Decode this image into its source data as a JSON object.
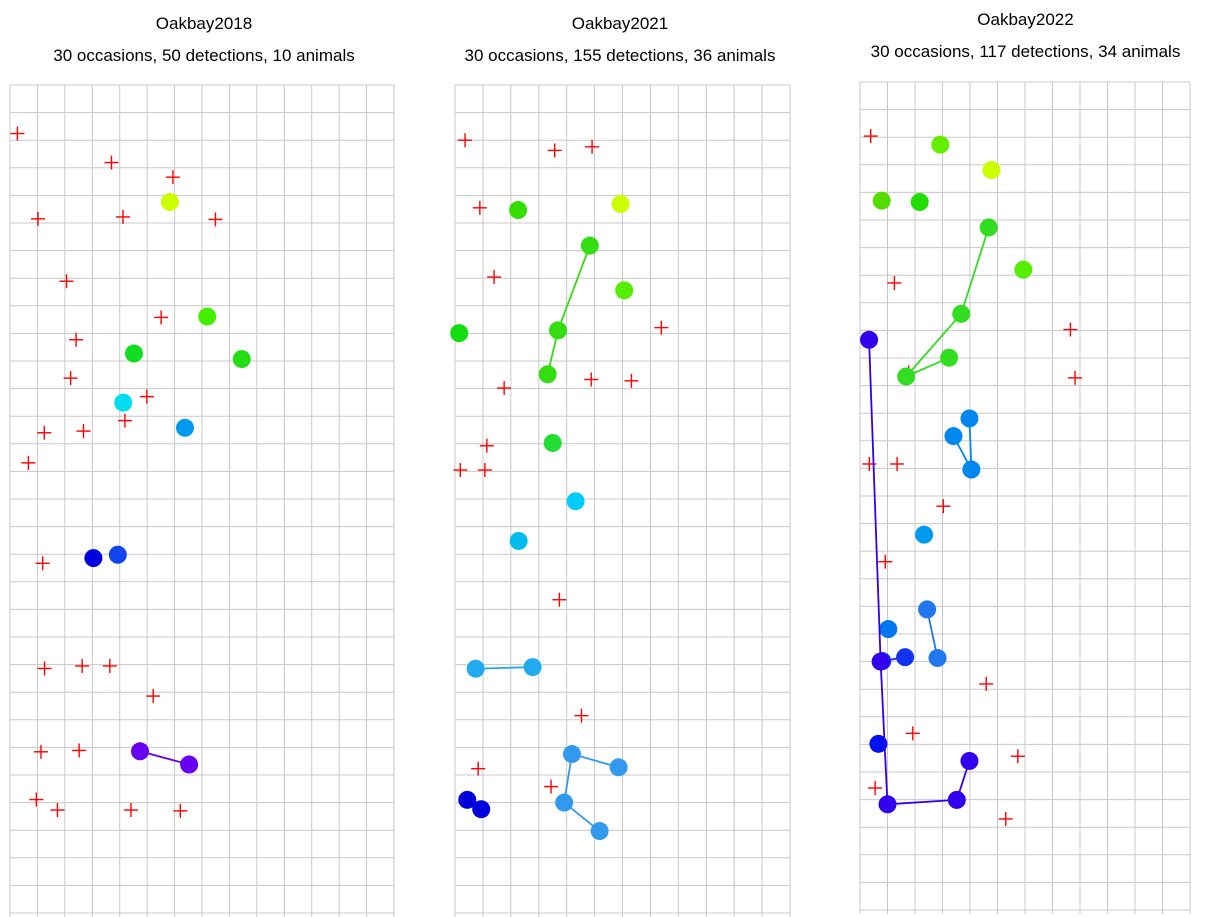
{
  "colors": {
    "grid": "#c8c8c8",
    "trap": "#ff0000"
  },
  "chart_data": [
    {
      "type": "scatter",
      "title": "Oakbay2018",
      "subtitle": "30 occasions, 50 detections, 10 animals",
      "traps": [
        [
          0.27,
          1.76
        ],
        [
          3.7,
          2.81
        ],
        [
          7.49,
          4.87
        ],
        [
          5.94,
          3.34
        ],
        [
          1.02,
          4.85
        ],
        [
          4.12,
          4.78
        ],
        [
          2.06,
          7.11
        ],
        [
          5.51,
          8.42
        ],
        [
          2.41,
          9.23
        ],
        [
          2.21,
          10.62
        ],
        [
          4.99,
          11.29
        ],
        [
          4.19,
          12.16
        ],
        [
          1.25,
          12.6
        ],
        [
          2.68,
          12.54
        ],
        [
          0.67,
          13.69
        ],
        [
          1.19,
          17.33
        ],
        [
          1.26,
          21.14
        ],
        [
          2.63,
          21.05
        ],
        [
          3.64,
          21.05
        ],
        [
          5.22,
          22.14
        ],
        [
          1.13,
          24.16
        ],
        [
          2.52,
          24.11
        ],
        [
          0.96,
          25.89
        ],
        [
          1.73,
          26.27
        ],
        [
          4.41,
          26.27
        ],
        [
          6.21,
          26.3
        ]
      ],
      "animals": [
        {
          "color": "#ccff00",
          "points": [
            [
              5.83,
              4.24
            ]
          ]
        },
        {
          "color": "#44ee00",
          "points": [
            [
              7.19,
              8.39
            ]
          ]
        },
        {
          "color": "#22dd11",
          "points": [
            [
              8.45,
              9.93
            ]
          ]
        },
        {
          "color": "#11dd22",
          "points": [
            [
              4.52,
              9.73
            ]
          ]
        },
        {
          "color": "#00ddee",
          "points": [
            [
              4.13,
              11.51
            ]
          ]
        },
        {
          "color": "#0099ee",
          "points": [
            [
              6.38,
              12.42
            ]
          ]
        },
        {
          "color": "#1144ee",
          "points": [
            [
              3.93,
              17.02
            ]
          ]
        },
        {
          "color": "#0000dd",
          "points": [
            [
              3.04,
              17.14
            ]
          ]
        },
        {
          "color": "#6600ee",
          "points": [
            [
              4.74,
              24.14
            ],
            [
              6.53,
              24.62
            ]
          ]
        }
      ]
    },
    {
      "type": "scatter",
      "title": "Oakbay2021",
      "subtitle": "30 occasions, 155 detections, 36 animals",
      "traps": [
        [
          0.36,
          2.0
        ],
        [
          3.57,
          2.37
        ],
        [
          4.91,
          2.24
        ],
        [
          0.89,
          4.45
        ],
        [
          1.4,
          6.96
        ],
        [
          7.39,
          8.79
        ],
        [
          4.88,
          10.67
        ],
        [
          6.32,
          10.72
        ],
        [
          1.76,
          10.98
        ],
        [
          1.14,
          13.07
        ],
        [
          0.19,
          13.95
        ],
        [
          1.07,
          13.95
        ],
        [
          3.74,
          18.65
        ],
        [
          4.53,
          22.85
        ],
        [
          0.83,
          24.77
        ],
        [
          3.44,
          25.42
        ]
      ],
      "animals": [
        {
          "color": "#ccff00",
          "points": [
            [
              5.93,
              4.31
            ]
          ]
        },
        {
          "color": "#33dd00",
          "points": [
            [
              2.26,
              4.53
            ]
          ]
        },
        {
          "color": "#55ee00",
          "points": [
            [
              6.06,
              7.44
            ]
          ]
        },
        {
          "color": "#33dd11",
          "points": [
            [
              4.83,
              5.82
            ],
            [
              3.69,
              8.89
            ],
            [
              3.32,
              10.48
            ]
          ]
        },
        {
          "color": "#11dd11",
          "points": [
            [
              0.15,
              8.99
            ]
          ]
        },
        {
          "color": "#22dd33",
          "points": [
            [
              3.5,
              12.97
            ]
          ]
        },
        {
          "color": "#00ccff",
          "points": [
            [
              4.32,
              15.08
            ]
          ]
        },
        {
          "color": "#00bbee",
          "points": [
            [
              2.28,
              16.52
            ]
          ]
        },
        {
          "color": "#22aaee",
          "points": [
            [
              0.74,
              21.15
            ],
            [
              2.78,
              21.09
            ]
          ]
        },
        {
          "color": "#3399ee",
          "points": [
            [
              5.86,
              24.72
            ],
            [
              4.19,
              24.24
            ],
            [
              3.91,
              26.0
            ],
            [
              5.18,
              27.03
            ]
          ]
        },
        {
          "color": "#0000dd",
          "points": [
            [
              0.44,
              25.9
            ],
            [
              0.94,
              26.24
            ]
          ]
        }
      ]
    },
    {
      "type": "scatter",
      "title": "Oakbay2022",
      "subtitle": "30 occasions, 117 detections, 34 animals",
      "traps": [
        [
          0.39,
          1.96
        ],
        [
          1.25,
          7.28
        ],
        [
          7.65,
          8.97
        ],
        [
          1.77,
          10.52
        ],
        [
          7.82,
          10.72
        ],
        [
          0.34,
          13.84
        ],
        [
          1.35,
          13.84
        ],
        [
          3.03,
          15.37
        ],
        [
          0.92,
          17.38
        ],
        [
          4.59,
          21.81
        ],
        [
          1.92,
          23.6
        ],
        [
          5.74,
          24.43
        ],
        [
          0.55,
          25.58
        ],
        [
          5.3,
          26.7
        ]
      ],
      "animals": [
        {
          "color": "#66ee00",
          "points": [
            [
              2.92,
              2.27
            ]
          ]
        },
        {
          "color": "#ccff00",
          "points": [
            [
              4.78,
              3.19
            ]
          ]
        },
        {
          "color": "#55dd00",
          "points": [
            [
              0.79,
              4.3
            ]
          ]
        },
        {
          "color": "#22dd00",
          "points": [
            [
              2.17,
              4.35
            ]
          ]
        },
        {
          "color": "#55ee00",
          "points": [
            [
              5.94,
              6.8
            ]
          ]
        },
        {
          "color": "#33dd22",
          "points": [
            [
              4.68,
              5.27
            ],
            [
              3.68,
              8.4
            ],
            [
              1.68,
              10.67
            ],
            [
              3.24,
              9.99
            ]
          ]
        },
        {
          "color": "#0088ee",
          "points": [
            [
              3.98,
              12.19
            ],
            [
              4.05,
              14.04
            ],
            [
              3.4,
              12.83
            ]
          ]
        },
        {
          "color": "#0099ee",
          "points": [
            [
              2.33,
              16.4
            ]
          ]
        },
        {
          "color": "#0077ee",
          "points": [
            [
              1.03,
              19.82
            ]
          ]
        },
        {
          "color": "#2277ee",
          "points": [
            [
              2.44,
              19.11
            ],
            [
              2.82,
              20.87
            ]
          ]
        },
        {
          "color": "#1133ee",
          "points": [
            [
              0.81,
              20.98
            ],
            [
              1.64,
              20.84
            ]
          ]
        },
        {
          "color": "#0011ee",
          "points": [
            [
              0.67,
              23.98
            ]
          ]
        },
        {
          "color": "#3300ee",
          "points": [
            [
              0.33,
              9.34
            ],
            [
              0.75,
              21.0
            ],
            [
              1.0,
              26.17
            ],
            [
              3.52,
              26.01
            ],
            [
              3.98,
              24.6
            ]
          ]
        }
      ]
    }
  ]
}
